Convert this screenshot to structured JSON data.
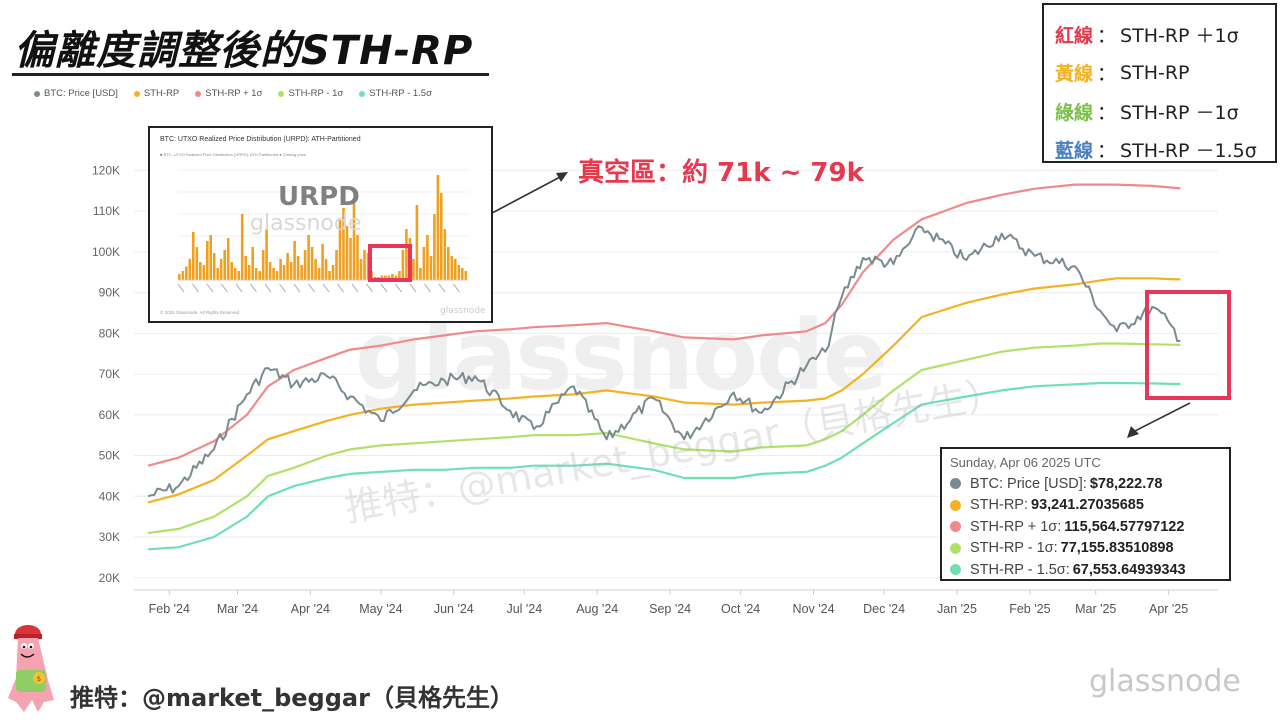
{
  "title": "偏離度調整後的STH-RP",
  "legend": [
    {
      "label": "BTC: Price [USD]",
      "color": "#7a8a8e"
    },
    {
      "label": "STH-RP",
      "color": "#f4b223"
    },
    {
      "label": "STH-RP + 1σ",
      "color": "#f08a8a"
    },
    {
      "label": "STH-RP - 1σ",
      "color": "#aee26a"
    },
    {
      "label": "STH-RP - 1.5σ",
      "color": "#6fe0b0"
    }
  ],
  "key_box": [
    {
      "label": "紅線",
      "sep": "：",
      "desc": "STH-RP ＋1σ",
      "color": "#e53950"
    },
    {
      "label": "黃線",
      "sep": "：",
      "desc": "STH-RP",
      "color": "#f4b223"
    },
    {
      "label": "綠線",
      "sep": "：",
      "desc": "STH-RP －1σ",
      "color": "#7cc04a"
    },
    {
      "label": "藍線",
      "sep": "：",
      "desc": "STH-RP －1.5σ",
      "color": "#4a7fc0"
    }
  ],
  "urpd_inset": {
    "title": "BTC: UTXO Realized Price Distribution (URPD): ATH-Partitioned",
    "legend_text": "■ BTC: UTXO Realized Price Distribution (URPD): ATH-Partitioned   ● Closing price",
    "label": "URPD",
    "watermark": "glassnode",
    "footer": "© 2025 Glassnode. All Rights Reserved.",
    "footer_watermark": "glassnode"
  },
  "annotation": "真空區：約 71k ~ 79k",
  "tooltip": {
    "date": "Sunday, Apr 06 2025 UTC",
    "rows": [
      {
        "label": "BTC: Price [USD]:",
        "value": "$78,222.78",
        "color": "#7a8a8e"
      },
      {
        "label": "STH-RP:",
        "value": "93,241.27035685",
        "color": "#f4b223"
      },
      {
        "label": "STH-RP + 1σ:",
        "value": "115,564.57797122",
        "color": "#f08a8a"
      },
      {
        "label": "STH-RP - 1σ:",
        "value": "77,155.83510898",
        "color": "#aee26a"
      },
      {
        "label": "STH-RP - 1.5σ:",
        "value": "67,553.64939343",
        "color": "#6fe0b0"
      }
    ]
  },
  "watermarks": {
    "center": "glassnode",
    "diagonal": "推特：@market_beggar（貝格先生）",
    "bottom_right": "glassnode"
  },
  "handle": "推特：@market_beggar（貝格先生）",
  "chart_data": {
    "type": "line",
    "x": [
      "2024-01-23",
      "2024-02-05",
      "2024-02-20",
      "2024-03-05",
      "2024-03-14",
      "2024-03-25",
      "2024-04-08",
      "2024-04-18",
      "2024-05-01",
      "2024-05-15",
      "2024-05-28",
      "2024-06-10",
      "2024-06-25",
      "2024-07-05",
      "2024-07-22",
      "2024-08-05",
      "2024-08-25",
      "2024-09-07",
      "2024-09-28",
      "2024-10-10",
      "2024-10-29",
      "2024-11-06",
      "2024-11-13",
      "2024-11-22",
      "2024-12-05",
      "2024-12-17",
      "2025-01-05",
      "2025-01-20",
      "2025-02-03",
      "2025-02-20",
      "2025-03-03",
      "2025-03-10",
      "2025-03-25",
      "2025-04-02",
      "2025-04-06"
    ],
    "series": [
      {
        "name": "BTC: Price [USD]",
        "color": "#7a8a8e",
        "values": [
          40000,
          42500,
          51500,
          65000,
          71500,
          67500,
          69500,
          64500,
          58500,
          66000,
          68500,
          69500,
          61000,
          56500,
          67000,
          54000,
          64000,
          54000,
          65500,
          60500,
          72000,
          75500,
          89000,
          98500,
          97000,
          106000,
          98000,
          104500,
          99000,
          96500,
          85500,
          80500,
          86500,
          82000,
          78222.78
        ]
      },
      {
        "name": "STH-RP",
        "color": "#f4b223",
        "values": [
          38500,
          40500,
          44000,
          50000,
          54000,
          56000,
          58500,
          60000,
          61500,
          62500,
          63000,
          63500,
          64000,
          64500,
          65000,
          66000,
          64500,
          63000,
          62500,
          63000,
          63500,
          64000,
          66000,
          70000,
          77000,
          84000,
          87500,
          89500,
          91000,
          92000,
          93000,
          93500,
          93500,
          93300,
          93241.27
        ]
      },
      {
        "name": "STH-RP + 1σ",
        "color": "#f08a8a",
        "values": [
          47500,
          49500,
          53500,
          60000,
          67000,
          71000,
          74000,
          76000,
          77000,
          78500,
          79500,
          80500,
          81000,
          81500,
          82000,
          82500,
          80500,
          79000,
          78500,
          79500,
          80500,
          82500,
          87000,
          95000,
          103000,
          108000,
          112000,
          114000,
          115500,
          116500,
          116500,
          116500,
          116200,
          115800,
          115564.58
        ]
      },
      {
        "name": "STH-RP - 1σ",
        "color": "#aee26a",
        "values": [
          31000,
          32000,
          35000,
          40000,
          45000,
          47000,
          50000,
          51500,
          52500,
          53000,
          53500,
          54000,
          54500,
          55000,
          55000,
          55500,
          53000,
          51500,
          51000,
          52000,
          52500,
          54000,
          56000,
          60000,
          66000,
          71000,
          73500,
          75500,
          76500,
          77000,
          77500,
          77500,
          77300,
          77200,
          77155.84
        ]
      },
      {
        "name": "STH-RP - 1.5σ",
        "color": "#6fe0b0",
        "values": [
          27000,
          27500,
          30000,
          35000,
          40000,
          42500,
          44500,
          45500,
          46000,
          46500,
          46500,
          47000,
          47000,
          47500,
          47500,
          48000,
          46500,
          44500,
          44500,
          45500,
          46000,
          47500,
          49500,
          53000,
          58000,
          62500,
          64500,
          66000,
          67000,
          67500,
          67800,
          67800,
          67700,
          67600,
          67553.65
        ]
      }
    ],
    "x_ticks": [
      "Feb '24",
      "Mar '24",
      "Apr '24",
      "May '24",
      "Jun '24",
      "Jul '24",
      "Aug '24",
      "Sep '24",
      "Oct '24",
      "Nov '24",
      "Dec '24",
      "Jan '25",
      "Feb '25",
      "Mar '25",
      "Apr '25"
    ],
    "y_ticks": [
      "20K",
      "30K",
      "40K",
      "50K",
      "60K",
      "70K",
      "80K",
      "90K",
      "100K",
      "110K",
      "120K"
    ],
    "ylim": [
      17000,
      125000
    ],
    "grid": true
  }
}
